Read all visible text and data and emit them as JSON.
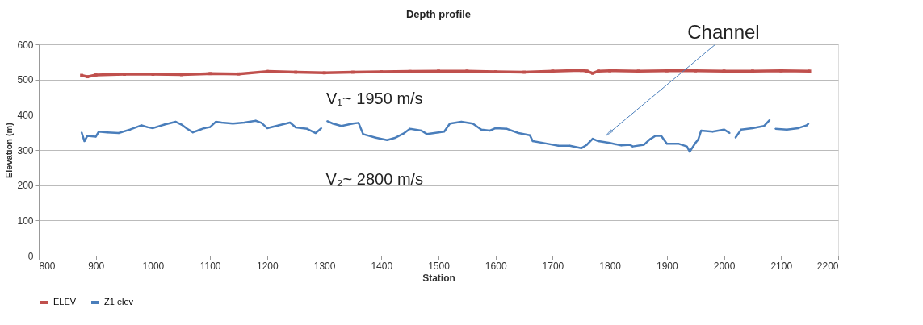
{
  "chart_data": {
    "type": "line",
    "title": "Depth profile",
    "xlabel": "Station",
    "ylabel": "Elevation (m)",
    "xlim": [
      800,
      2200
    ],
    "xticks": [
      800,
      900,
      1000,
      1100,
      1200,
      1300,
      1400,
      1500,
      1600,
      1700,
      1800,
      1900,
      2000,
      2100,
      2200
    ],
    "ylim": [
      0,
      600
    ],
    "yticks": [
      0,
      100,
      200,
      300,
      400,
      500,
      600
    ],
    "grid": "y",
    "legend": "bottom",
    "annotations": [
      "V₁~ 1950 m/s",
      "V₂~ 2800 m/s",
      {
        "text": "Channel",
        "x": 1800,
        "y": 350
      }
    ],
    "series": [
      {
        "name": "ELEV",
        "color": "#c0504d",
        "marker": "square",
        "x": [
          875,
          885,
          900,
          950,
          1000,
          1050,
          1100,
          1150,
          1200,
          1250,
          1300,
          1350,
          1400,
          1450,
          1500,
          1550,
          1600,
          1650,
          1700,
          1750,
          1760,
          1770,
          1780,
          1800,
          1850,
          1900,
          1950,
          2000,
          2050,
          2100,
          2150
        ],
        "values": [
          512,
          508,
          513,
          515,
          515,
          514,
          517,
          516,
          523,
          521,
          519,
          521,
          522,
          523,
          524,
          524,
          522,
          521,
          524,
          526,
          524,
          518,
          524,
          525,
          524,
          525,
          525,
          524,
          524,
          525,
          524
        ]
      },
      {
        "name": "Z1 elev",
        "color": "#4a7ebb",
        "marker": "diamond",
        "x": [
          875,
          880,
          885,
          900,
          905,
          920,
          940,
          960,
          980,
          990,
          1000,
          1020,
          1040,
          1050,
          1060,
          1070,
          1080,
          1090,
          1100,
          1110,
          1120,
          1140,
          1160,
          1180,
          1190,
          1200,
          1220,
          1240,
          1250,
          1270,
          1285,
          1295,
          1300,
          1305,
          1315,
          1330,
          1350,
          1360,
          1368,
          1390,
          1410,
          1425,
          1440,
          1450,
          1470,
          1480,
          1500,
          1510,
          1520,
          1540,
          1560,
          1575,
          1590,
          1600,
          1620,
          1640,
          1660,
          1665,
          1690,
          1710,
          1730,
          1750,
          1760,
          1770,
          1780,
          1800,
          1820,
          1835,
          1840,
          1860,
          1870,
          1880,
          1890,
          1900,
          1920,
          1935,
          1940,
          1950,
          1955,
          1960,
          1980,
          2000,
          2010,
          2015,
          2020,
          2030,
          2050,
          2070,
          2080,
          2085,
          2090,
          2110,
          2130,
          2145,
          2148
        ],
        "values": [
          350,
          325,
          340,
          338,
          352,
          350,
          348,
          358,
          370,
          365,
          362,
          372,
          380,
          372,
          360,
          350,
          356,
          362,
          365,
          380,
          378,
          375,
          378,
          383,
          377,
          362,
          370,
          378,
          364,
          360,
          348,
          362,
          null,
          382,
          375,
          368,
          375,
          377,
          345,
          335,
          328,
          335,
          348,
          360,
          355,
          345,
          350,
          352,
          375,
          380,
          375,
          358,
          355,
          362,
          360,
          348,
          342,
          325,
          318,
          312,
          312,
          305,
          315,
          332,
          325,
          320,
          313,
          315,
          310,
          315,
          330,
          340,
          340,
          318,
          318,
          310,
          295,
          320,
          330,
          355,
          352,
          358,
          348,
          null,
          335,
          358,
          362,
          368,
          385,
          null,
          360,
          358,
          362,
          370,
          375
        ]
      }
    ]
  }
}
